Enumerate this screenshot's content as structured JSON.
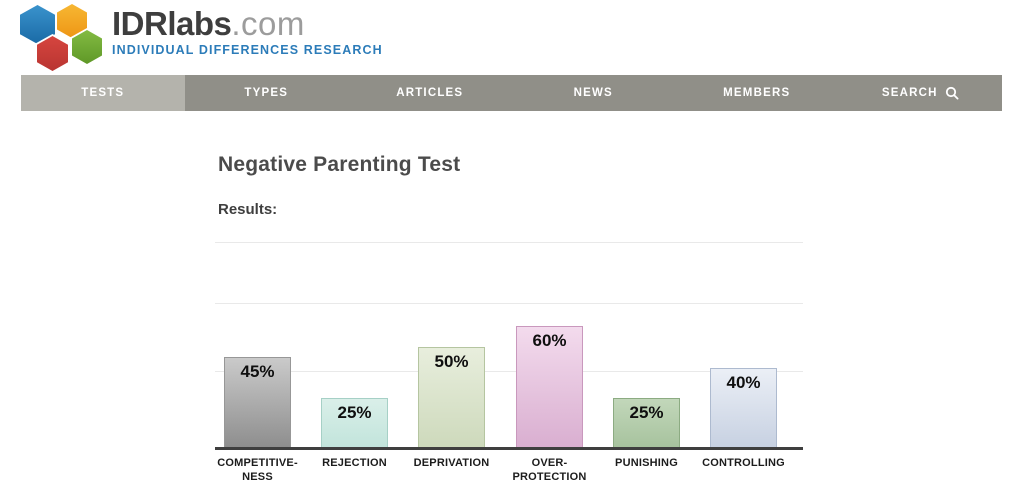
{
  "header": {
    "logo": {
      "brand": "IDRlabs",
      "brand_suffix": ".com",
      "tagline": "INDIVIDUAL DIFFERENCES RESEARCH",
      "hex_colors": {
        "blue": "#2077b4",
        "orange": "#f2a31f",
        "red": "#c93a36",
        "green": "#72ac35"
      }
    },
    "nav": {
      "colors": {
        "bar": "#908f88",
        "active_item": "#b4b3ac",
        "text": "#ffffff"
      },
      "items": [
        {
          "label": "TESTS",
          "active": true
        },
        {
          "label": "TYPES",
          "active": false
        },
        {
          "label": "ARTICLES",
          "active": false
        },
        {
          "label": "NEWS",
          "active": false
        },
        {
          "label": "MEMBERS",
          "active": false
        },
        {
          "label": "SEARCH",
          "active": false,
          "icon": "search-icon"
        }
      ]
    }
  },
  "main": {
    "title": "Negative Parenting Test",
    "results_label": "Results:"
  },
  "chart_data": {
    "type": "bar",
    "title": "",
    "xlabel": "",
    "ylabel": "",
    "ylim": [
      0,
      100
    ],
    "grid": true,
    "categories": [
      "COMPETITIVE-NESS",
      "REJECTION",
      "DEPRIVATION",
      "OVER-PROTECTION",
      "PUNISHING",
      "CONTROLLING"
    ],
    "category_label_lines": [
      [
        "COMPETITIVE-",
        "NESS"
      ],
      [
        "REJECTION"
      ],
      [
        "DEPRIVATION"
      ],
      [
        "OVER-",
        "PROTECTION"
      ],
      [
        "PUNISHING"
      ],
      [
        "CONTROLLING"
      ]
    ],
    "values": [
      45,
      25,
      50,
      60,
      25,
      40
    ],
    "value_labels": [
      "45%",
      "25%",
      "50%",
      "60%",
      "25%",
      "40%"
    ],
    "bar_colors": [
      {
        "top": "#cacaca",
        "bottom": "#8d8d8d",
        "border": "#979797"
      },
      {
        "top": "#daefe9",
        "bottom": "#c1e4db",
        "border": "#a6d0c6"
      },
      {
        "top": "#e8eedd",
        "bottom": "#cdd9bb",
        "border": "#b5c5a0"
      },
      {
        "top": "#f3dbed",
        "bottom": "#d9aed0",
        "border": "#c998bd"
      },
      {
        "top": "#c2d7ba",
        "bottom": "#a6c29d",
        "border": "#8cab82"
      },
      {
        "top": "#ebeff6",
        "bottom": "#c6d0e1",
        "border": "#adbacf"
      }
    ],
    "axis_color": "#3f3f3f",
    "gridline_color": "#e9e9e9"
  }
}
